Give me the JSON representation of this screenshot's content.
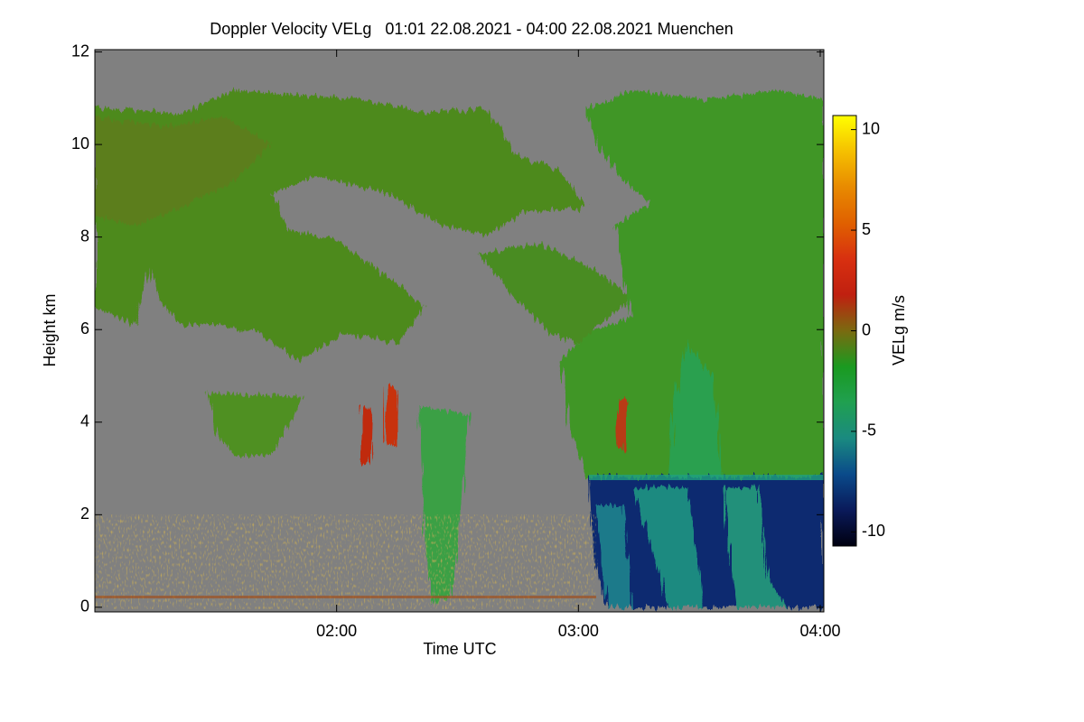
{
  "chart_data": {
    "type": "heatmap",
    "title": "Doppler Velocity VELg   01:01 22.08.2021 - 04:00 22.08.2021 Muenchen",
    "x_label": "Time UTC",
    "y_label": "Height km",
    "xlim": [
      1.0,
      4.015
    ],
    "xticks": [
      {
        "value": 2,
        "label": "02:00"
      },
      {
        "value": 3,
        "label": "03:00"
      },
      {
        "value": 4,
        "label": "04:00"
      }
    ],
    "ylim": [
      -0.1,
      12.05
    ],
    "yticks": [
      0,
      2,
      4,
      6,
      8,
      10,
      12
    ],
    "colorbar": {
      "label": "VELg m/s",
      "lim": [
        -10.7,
        10.7
      ],
      "ticks": [
        -10,
        -5,
        0,
        5,
        10
      ],
      "colors": [
        "#000010",
        "#0a1a5a",
        "#0a4a8a",
        "#1a8a80",
        "#20a050",
        "#1a9a20",
        "#7a6a10",
        "#c02010",
        "#d83010",
        "#e06000",
        "#e88a00",
        "#f5c000",
        "#ffff00"
      ]
    }
  }
}
